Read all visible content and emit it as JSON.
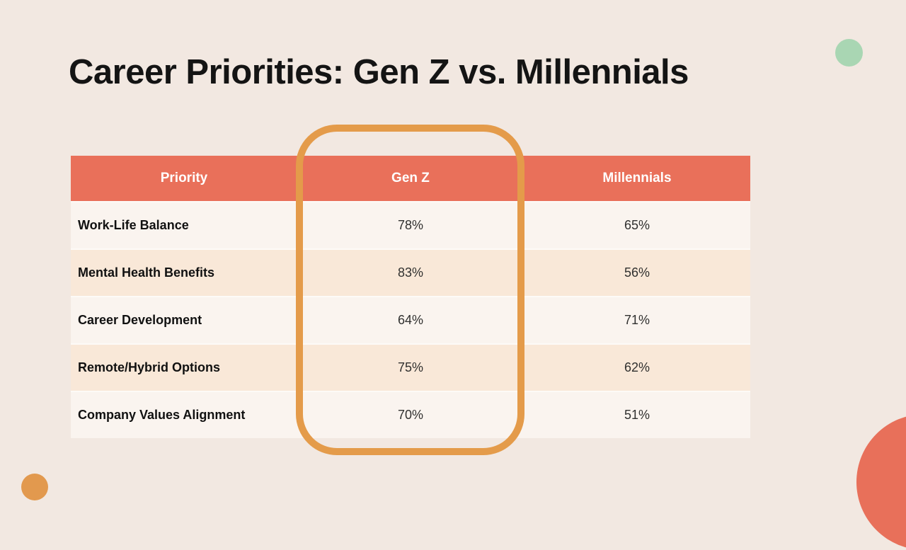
{
  "slide": {
    "title": "Career Priorities: Gen Z vs. Millennials"
  },
  "table": {
    "columns": [
      "Priority",
      "Gen Z",
      "Millennials"
    ],
    "rows": [
      {
        "priority": "Work-Life Balance",
        "gen_z": "78%",
        "millennials": "65%"
      },
      {
        "priority": "Mental Health Benefits",
        "gen_z": "83%",
        "millennials": "56%"
      },
      {
        "priority": "Career Development",
        "gen_z": "64%",
        "millennials": "71%"
      },
      {
        "priority": "Remote/Hybrid Options",
        "gen_z": "75%",
        "millennials": "62%"
      },
      {
        "priority": "Company Values Alignment",
        "gen_z": "70%",
        "millennials": "51%"
      }
    ],
    "highlighted_column": "Gen Z"
  },
  "colors": {
    "background": "#F2E8E1",
    "table_header": "#E9705A",
    "row_light": "#FAF4EF",
    "row_peach": "#F9E8D8",
    "highlight_ring": "#E49B4A",
    "circle_green": "#A9D6B3",
    "circle_orange": "#E2994E",
    "circle_salmon": "#E8705A",
    "title_text": "#141414",
    "header_text": "#FFFFFF"
  }
}
